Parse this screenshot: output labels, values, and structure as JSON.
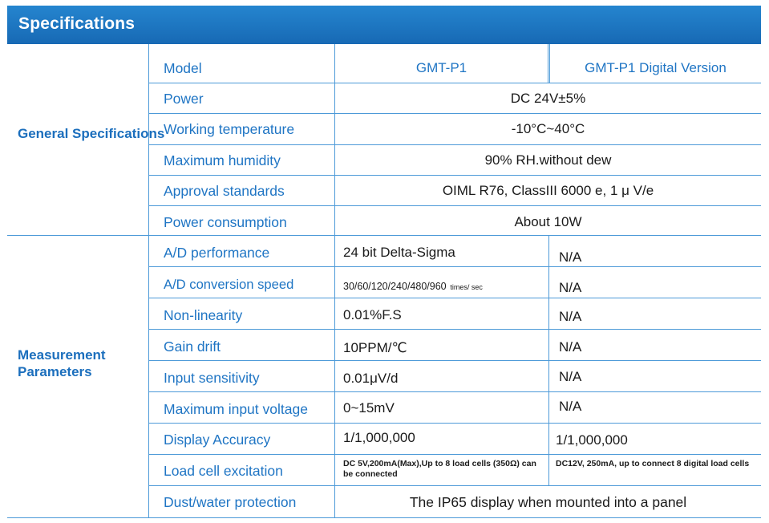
{
  "title": "Specifications",
  "groups": {
    "general": "General Specifications",
    "measurement": "Measurement Parameters"
  },
  "columns": {
    "a": "GMT-P1",
    "b": "GMT-P1 Digital Version"
  },
  "model_label": "Model",
  "general_rows": [
    {
      "param": "Power",
      "value": "DC 24V±5%"
    },
    {
      "param": "Working temperature",
      "value": "-10°C~40°C"
    },
    {
      "param": "Maximum humidity",
      "value": "90% RH.without dew"
    },
    {
      "param": "Approval standards",
      "value": "OIML R76, ClassIII 6000 e, 1 μ V/e"
    },
    {
      "param": "Power consumption",
      "value": "About 10W"
    }
  ],
  "measurement_rows": [
    {
      "param": "A/D performance",
      "a": "24 bit Delta-Sigma",
      "b": "N/A"
    },
    {
      "param": "A/D conversion speed",
      "a": "30/60/120/240/480/960",
      "a_unit": "times/ sec",
      "b": "N/A"
    },
    {
      "param": "Non-linearity",
      "a": "0.01%F.S",
      "b": "N/A"
    },
    {
      "param": "Gain drift",
      "a": "10PPM/℃",
      "b": "N/A"
    },
    {
      "param": "Input sensitivity",
      "a": "0.01μV/d",
      "b": "N/A"
    },
    {
      "param": "Maximum input voltage",
      "a": "0~15mV",
      "b": "N/A"
    },
    {
      "param": "Display Accuracy",
      "a": "1/1,000,000",
      "b": "1/1,000,000"
    },
    {
      "param": "Load cell excitation",
      "a": "DC 5V,200mA(Max),Up to 8 load cells (350Ω) can be connected",
      "b": "DC12V, 250mA, up to connect 8 digital load cells"
    },
    {
      "param": "Dust/water protection",
      "value": "The IP65 display when mounted into a panel"
    }
  ]
}
